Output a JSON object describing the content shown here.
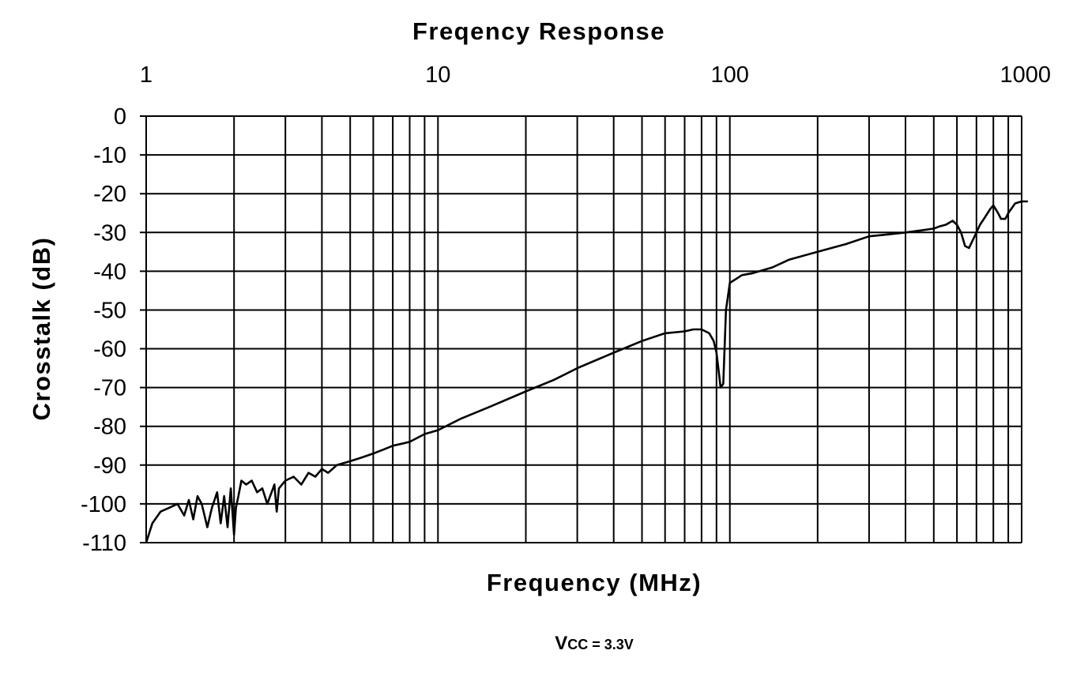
{
  "chart_data": {
    "type": "line",
    "title": "Freqency Response",
    "xlabel": "Frequency (MHz)",
    "ylabel": "Crosstalk (dB)",
    "xscale": "log",
    "xlim": [
      1,
      1000
    ],
    "ylim": [
      -110,
      0
    ],
    "grid": true,
    "legend": "none",
    "xticks": [
      "1",
      "10",
      "100",
      "1000"
    ],
    "yticks": [
      "0",
      "-10",
      "-20",
      "-30",
      "-40",
      "-50",
      "-60",
      "-70",
      "-80",
      "-90",
      "-100",
      "-110"
    ],
    "annotation": {
      "main": "V",
      "sub": "CC",
      "rest": " = 3.3V"
    },
    "series": [
      {
        "name": "Crosstalk",
        "x": [
          1.0,
          1.05,
          1.12,
          1.2,
          1.28,
          1.35,
          1.4,
          1.45,
          1.5,
          1.55,
          1.62,
          1.68,
          1.75,
          1.8,
          1.85,
          1.9,
          1.95,
          2.0,
          2.03,
          2.07,
          2.12,
          2.2,
          2.3,
          2.4,
          2.5,
          2.6,
          2.75,
          2.8,
          2.85,
          3.0,
          3.2,
          3.4,
          3.6,
          3.8,
          4.0,
          4.2,
          4.5,
          5,
          5.5,
          6,
          6.5,
          7,
          7.5,
          8,
          9,
          10,
          12,
          15,
          20,
          25,
          30,
          40,
          50,
          60,
          70,
          75,
          80,
          85,
          88,
          90,
          92,
          93,
          95,
          97,
          100,
          105,
          110,
          120,
          140,
          160,
          200,
          250,
          300,
          350,
          400,
          450,
          500,
          520,
          550,
          580,
          600,
          620,
          640,
          660,
          700,
          720,
          750,
          780,
          800,
          830,
          850,
          880,
          900,
          950,
          1000,
          1050
        ],
        "y": [
          -110,
          -105,
          -102,
          -101,
          -100,
          -103,
          -99,
          -104,
          -98,
          -100,
          -106,
          -101,
          -97,
          -105,
          -98,
          -106,
          -96,
          -108,
          -101,
          -98,
          -94,
          -95,
          -94,
          -97,
          -96,
          -100,
          -95,
          -102,
          -96,
          -94,
          -93,
          -95,
          -92,
          -93,
          -91,
          -92,
          -90,
          -89,
          -88,
          -87,
          -86,
          -85,
          -84.5,
          -84,
          -82,
          -81,
          -78,
          -75,
          -71,
          -68,
          -65,
          -61,
          -58,
          -56,
          -55.5,
          -55,
          -55,
          -56,
          -58,
          -61,
          -67,
          -70,
          -69,
          -50,
          -43,
          -42,
          -41,
          -40.5,
          -39,
          -37,
          -35,
          -33,
          -31,
          -30.5,
          -30,
          -29.5,
          -29,
          -28.5,
          -28,
          -27,
          -28,
          -30,
          -33.5,
          -34,
          -30,
          -28,
          -26,
          -24,
          -23,
          -25,
          -26.5,
          -26.5,
          -25,
          -22.5,
          -22,
          -22
        ]
      }
    ]
  }
}
